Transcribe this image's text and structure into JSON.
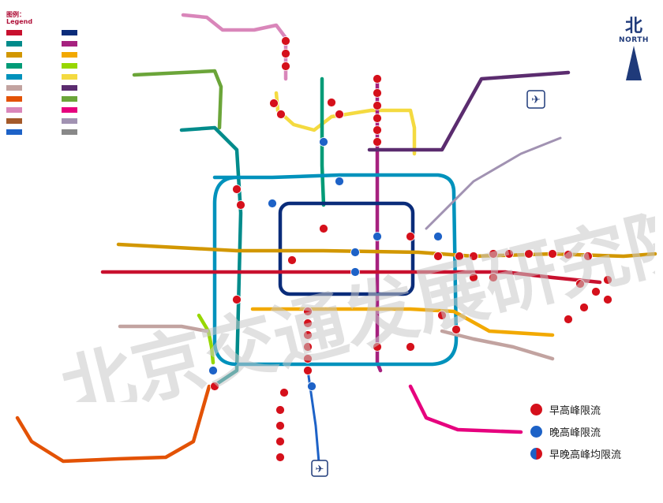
{
  "legend": {
    "title_cn": "图例：",
    "title_en": "Legend"
  },
  "compass": {
    "label_cn": "北",
    "label_en": "NORTH"
  },
  "watermark": {
    "text": "北京交通发展研究院"
  },
  "key": {
    "items": [
      {
        "label": "早高峰限流",
        "color": "#d5101b"
      },
      {
        "label": "晚高峰限流",
        "color": "#1d62c7"
      },
      {
        "label": "早晚高峰均限流",
        "color": "split"
      }
    ]
  },
  "colors": {
    "line1": "#c8102e",
    "line2": "#0a2c7a",
    "line4": "#008b8b",
    "line5": "#a6217f",
    "line6": "#d29700",
    "line7": "#f2a900",
    "line8": "#009b77",
    "line9": "#97d700",
    "line10": "#0092bc",
    "line13": "#f4da40",
    "line14": "#c2a3a0",
    "line15": "#5b2c6f",
    "line16": "#6ba539",
    "changping": "#d986ba",
    "batong": "#c8102e",
    "fangshan": "#e35205",
    "yizhuang": "#e6007e",
    "airport": "#a192b2",
    "s1": "#a45a2a",
    "dot_morning": "#d5101b",
    "dot_evening": "#1d62c7"
  }
}
